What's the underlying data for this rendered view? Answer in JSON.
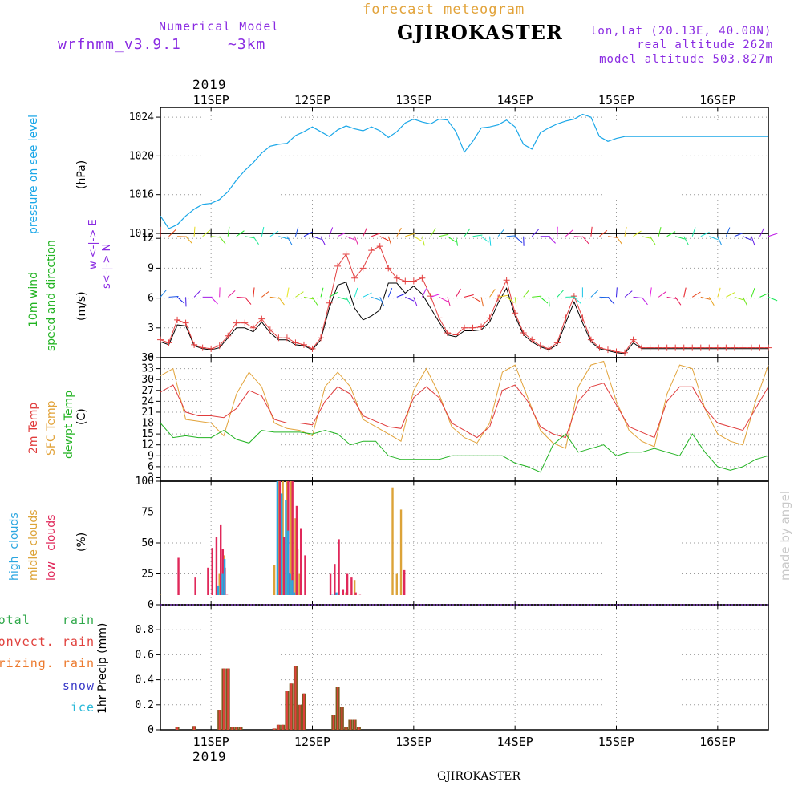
{
  "header": {
    "model_title": "Numerical Model",
    "model_name": "wrfnmm_v3.9.1",
    "resolution": "~3km",
    "product": "forecast meteogram",
    "location": "GJIROKASTER",
    "coords": "lon,lat (20.13E, 40.08N)",
    "real_altitude": "real altitude 262m",
    "model_altitude": "model altitude  503.827m",
    "year": "2019",
    "footer_location": "GJIROKASTER",
    "watermark": "made by angel"
  },
  "colors": {
    "pressure": "#1aa7e8",
    "temp2m": "#e03c3c",
    "sfc": "#e2a33a",
    "dewpt": "#22b322",
    "wind_obs": "#e34040",
    "wind_black": "#000000",
    "high": "#2aa6e0",
    "middle": "#dca338",
    "low": "#e0285a",
    "total": "#2fa84a",
    "convect": "#e0403c",
    "freezing": "#ec7a2e",
    "snow": "#3a3ac8",
    "ice": "#28b8d8",
    "purple": "#8a2be2"
  },
  "panel_labels": {
    "pressure": [
      "pressure on see level",
      "(hPa)"
    ],
    "wind": [
      "10m wind",
      "speed and direction",
      "(m/s)",
      "w <-|-> E",
      "s<-|-> N"
    ],
    "temp": [
      "2m Temp",
      "SFC Temp",
      "dewpt Temp",
      "(C)"
    ],
    "clouds": [
      "high  clouds",
      "midle clouds",
      "low   clouds",
      "(%)"
    ],
    "precip_legend": [
      "total    rain",
      "convect. rain",
      "frizing. rain",
      "snow",
      "ice"
    ],
    "precip_axis": "1hr Precip (mm)"
  },
  "x_axis": {
    "top_labels": [
      "11SEP",
      "12SEP",
      "13SEP",
      "14SEP",
      "15SEP",
      "16SEP"
    ],
    "bottom_labels": [
      "11SEP",
      "12SEP",
      "13SEP",
      "14SEP",
      "15SEP",
      "16SEP"
    ]
  },
  "chart_data": [
    {
      "type": "line",
      "title": "pressure on see level",
      "ylabel": "(hPa)",
      "x_unit": "hours from 10SEP 12UTC",
      "ylim": [
        1012,
        1025
      ],
      "y_ticks": [
        "1012",
        "1016",
        "1020",
        "1024"
      ],
      "series": [
        {
          "name": "pressure on see level",
          "x": [
            0,
            2,
            4,
            6,
            8,
            10,
            12,
            14,
            16,
            18,
            20,
            22,
            24,
            26,
            28,
            30,
            32,
            34,
            36,
            38,
            40,
            42,
            44,
            46,
            48,
            50,
            52,
            54,
            56,
            58,
            60,
            62,
            64,
            66,
            68,
            70,
            72,
            74,
            76,
            78,
            80,
            82,
            84,
            86,
            88,
            90,
            92,
            94,
            96,
            98,
            100,
            102,
            104,
            106,
            108,
            110,
            112,
            114,
            116,
            118,
            120,
            122,
            124,
            126,
            128,
            130,
            132,
            134,
            136,
            138,
            140,
            142,
            144
          ],
          "values": [
            1013.8,
            1012.5,
            1012.9,
            1013.8,
            1014.5,
            1015.0,
            1015.1,
            1015.5,
            1016.3,
            1017.5,
            1018.5,
            1019.3,
            1020.3,
            1021.0,
            1021.2,
            1021.3,
            1022.1,
            1022.5,
            1023.0,
            1022.5,
            1022.0,
            1022.7,
            1023.1,
            1022.8,
            1022.6,
            1023.0,
            1022.6,
            1021.9,
            1022.5,
            1023.4,
            1023.8,
            1023.5,
            1023.3,
            1023.8,
            1023.7,
            1022.5,
            1020.4,
            1021.5,
            1022.9,
            1023.0,
            1023.2,
            1023.7,
            1023.0,
            1021.2,
            1020.7,
            1022.4,
            1022.9,
            1023.3,
            1023.6,
            1023.8,
            1024.3,
            1024.0,
            1022.0,
            1021.5,
            1021.8,
            1022.0,
            1022.0,
            1022.0,
            1022.0,
            1022.0,
            1022.0,
            1022.0,
            1022.0,
            1022.0,
            1022.0,
            1022.0,
            1022.0,
            1022.0,
            1022.0,
            1022.0,
            1022.0,
            1022.0,
            1022.0
          ]
        }
      ]
    },
    {
      "type": "line",
      "title": "10m wind speed and direction",
      "ylabel": "(m/s)",
      "ylim": [
        0,
        12.5
      ],
      "y_ticks": [
        "0",
        "3",
        "6",
        "9",
        "12"
      ],
      "series": [
        {
          "name": "",
          "x": [
            0,
            2,
            4,
            6,
            8,
            10,
            12,
            14,
            16,
            18,
            20,
            22,
            24,
            26,
            28,
            30,
            32,
            34,
            36,
            38,
            40,
            42,
            44,
            46,
            48,
            50,
            52,
            54,
            56,
            58,
            60,
            62,
            64,
            66,
            68,
            70,
            72,
            74,
            76,
            78,
            80,
            82,
            84,
            86,
            88,
            90,
            92,
            94,
            96,
            98,
            100,
            102,
            104,
            106,
            108,
            110,
            112,
            114,
            116,
            118,
            120,
            122,
            124,
            126,
            128,
            130,
            132,
            134,
            136,
            138,
            140,
            142,
            144
          ],
          "values": [
            1.8,
            1.5,
            3.8,
            3.5,
            1.3,
            1.0,
            0.9,
            1.2,
            2.2,
            3.5,
            3.5,
            3.0,
            3.9,
            2.8,
            2.0,
            2.0,
            1.5,
            1.3,
            0.9,
            2.0,
            5.5,
            9.2,
            10.4,
            8.0,
            9.0,
            10.8,
            11.2,
            9.0,
            8.0,
            7.7,
            7.7,
            8.0,
            6.2,
            4.0,
            2.5,
            2.3,
            3.0,
            3.0,
            3.1,
            4.0,
            6.0,
            7.8,
            4.5,
            2.5,
            1.8,
            1.2,
            0.9,
            1.5,
            4.0,
            6.2,
            4.0,
            1.8,
            1.0,
            0.8,
            0.6,
            0.5,
            1.8,
            1.0,
            1.0,
            1.0,
            1.0,
            1.0,
            1.0,
            1.0,
            1.0,
            1.0,
            1.0,
            1.0,
            1.0,
            1.0,
            1.0,
            1.0,
            1.0
          ]
        },
        {
          "name": "",
          "x": [
            0,
            2,
            4,
            6,
            8,
            10,
            12,
            14,
            16,
            18,
            20,
            22,
            24,
            26,
            28,
            30,
            32,
            34,
            36,
            38,
            40,
            42,
            44,
            46,
            48,
            50,
            52,
            54,
            56,
            58,
            60,
            62,
            64,
            66,
            68,
            70,
            72,
            74,
            76,
            78,
            80,
            82,
            84,
            86,
            88,
            90,
            92,
            94,
            96,
            98,
            100,
            102,
            104,
            106,
            108,
            110,
            112,
            114,
            116,
            118,
            120,
            122,
            124,
            126,
            128,
            130,
            132,
            134,
            136,
            138,
            140,
            142,
            144
          ],
          "values": [
            1.6,
            1.3,
            3.3,
            3.2,
            1.2,
            0.9,
            0.8,
            1.0,
            2.0,
            3.0,
            3.0,
            2.6,
            3.6,
            2.5,
            1.8,
            1.8,
            1.3,
            1.2,
            0.8,
            1.8,
            5.0,
            7.3,
            7.6,
            5.0,
            3.8,
            4.2,
            4.8,
            7.5,
            7.5,
            6.5,
            7.2,
            6.4,
            5.0,
            3.6,
            2.3,
            2.1,
            2.7,
            2.7,
            2.8,
            3.6,
            5.5,
            7.0,
            4.2,
            2.3,
            1.6,
            1.1,
            0.8,
            1.3,
            3.5,
            5.6,
            3.5,
            1.6,
            0.9,
            0.7,
            0.5,
            0.4,
            1.5,
            0.9,
            0.9,
            0.9,
            0.9,
            0.9,
            0.9,
            0.9,
            0.9,
            0.9,
            0.9,
            0.9,
            0.9,
            0.9,
            0.9,
            0.9,
            0.9
          ]
        }
      ]
    },
    {
      "type": "line",
      "title": "2m Temp / SFC Temp / dewpt Temp",
      "ylabel": "(C)",
      "ylim": [
        2,
        36
      ],
      "y_ticks": [
        "3",
        "6",
        "9",
        "12",
        "15",
        "18",
        "21",
        "24",
        "27",
        "30",
        "33",
        "36"
      ],
      "series": [
        {
          "name": "2m Temp",
          "x": [
            0,
            3,
            6,
            9,
            12,
            15,
            18,
            21,
            24,
            27,
            30,
            33,
            36,
            39,
            42,
            45,
            48,
            51,
            54,
            57,
            60,
            63,
            66,
            69,
            72,
            75,
            78,
            81,
            84,
            87,
            90,
            93,
            96,
            99,
            102,
            105,
            108,
            111,
            114,
            117,
            120,
            123,
            126,
            129,
            132,
            135,
            138,
            141,
            144
          ],
          "values": [
            26.5,
            28.5,
            21,
            20,
            20,
            19.5,
            22,
            27,
            25.5,
            19,
            18,
            18,
            17.5,
            24,
            28,
            26,
            20,
            18.5,
            17,
            16.5,
            25,
            28,
            25,
            18,
            16,
            14,
            17,
            27,
            28.5,
            24,
            17,
            15,
            14,
            24,
            28,
            29,
            23,
            17,
            15.5,
            14,
            24,
            28,
            28,
            22,
            18,
            17,
            16,
            22,
            28
          ]
        },
        {
          "name": "SFC Temp",
          "x": [
            0,
            3,
            6,
            9,
            12,
            15,
            18,
            21,
            24,
            27,
            30,
            33,
            36,
            39,
            42,
            45,
            48,
            51,
            54,
            57,
            60,
            63,
            66,
            69,
            72,
            75,
            78,
            81,
            84,
            87,
            90,
            93,
            96,
            99,
            102,
            105,
            108,
            111,
            114,
            117,
            120,
            123,
            126,
            129,
            132,
            135,
            138,
            141,
            144
          ],
          "values": [
            31,
            33,
            19,
            18.5,
            18,
            14.5,
            26,
            32,
            28,
            18,
            16.5,
            16,
            14.5,
            28,
            32,
            28,
            19,
            17,
            15,
            13,
            27,
            33,
            26,
            17,
            14,
            12.5,
            18,
            32,
            34,
            25,
            16,
            12.5,
            11,
            28,
            34,
            35,
            24,
            16,
            13,
            11.5,
            26,
            34,
            33,
            22,
            15,
            13,
            12,
            24,
            34
          ]
        },
        {
          "name": "dewpt Temp",
          "x": [
            0,
            3,
            6,
            9,
            12,
            15,
            18,
            21,
            24,
            27,
            30,
            33,
            36,
            39,
            42,
            45,
            48,
            51,
            54,
            57,
            60,
            63,
            66,
            69,
            72,
            75,
            78,
            81,
            84,
            87,
            90,
            93,
            96,
            99,
            102,
            105,
            108,
            111,
            114,
            117,
            120,
            123,
            126,
            129,
            132,
            135,
            138,
            141,
            144
          ],
          "values": [
            18,
            14,
            14.5,
            14,
            14,
            16,
            13.5,
            12.5,
            16,
            15.5,
            15.5,
            15.5,
            15,
            16,
            15,
            12,
            13,
            13,
            9,
            8,
            8,
            8,
            8,
            9,
            9,
            9,
            9,
            9,
            7,
            6,
            4.5,
            12,
            15,
            10,
            11,
            12,
            9,
            10,
            10,
            11,
            10,
            9,
            15,
            10,
            6,
            5,
            6,
            8,
            9
          ]
        }
      ]
    },
    {
      "type": "bar",
      "title": "clouds",
      "ylabel": "(%)",
      "ylim": [
        0,
        100
      ],
      "y_ticks": [
        "0",
        "25",
        "50",
        "75",
        "100"
      ],
      "series": [
        {
          "name": "high  clouds",
          "x": [
            14,
            15,
            15.5,
            28,
            29,
            30,
            30.5,
            31,
            31.5,
            32,
            41,
            41.5,
            42,
            42.5,
            43
          ],
          "values": [
            15,
            25,
            37,
            100,
            90,
            85,
            60,
            25,
            20,
            10,
            8,
            5,
            10,
            5,
            5
          ]
        },
        {
          "name": "midle clouds",
          "x": [
            0,
            13,
            14,
            15,
            27,
            28,
            29,
            30,
            31,
            32,
            32.5,
            33,
            34,
            40,
            42,
            44,
            45,
            46,
            55,
            56,
            57,
            58
          ],
          "values": [
            8,
            5,
            25,
            40,
            32,
            100,
            100,
            100,
            100,
            70,
            45,
            25,
            5,
            5,
            5,
            10,
            8,
            20,
            95,
            25,
            77,
            5
          ]
        },
        {
          "name": "low   clouds",
          "x": [
            4,
            8,
            11,
            12,
            13,
            14,
            14.5,
            15,
            15.5,
            28,
            29,
            30,
            31,
            32,
            33,
            34,
            40,
            41,
            42,
            43,
            44,
            45,
            46,
            47,
            57.5
          ],
          "values": [
            38,
            22,
            30,
            46,
            55,
            65,
            45,
            30,
            8,
            100,
            55,
            100,
            100,
            80,
            62,
            40,
            25,
            33,
            53,
            12,
            25,
            22,
            10,
            8,
            28
          ]
        }
      ]
    },
    {
      "type": "bar",
      "title": "1hr Precip",
      "ylabel": "1hr Precip (mm)",
      "ylim": [
        0,
        1.0
      ],
      "y_ticks": [
        "0",
        "0.2",
        "0.4",
        "0.6",
        "0.8"
      ],
      "series": [
        {
          "name": "total    rain",
          "x": [
            4,
            8,
            14,
            15,
            16,
            17,
            18,
            19,
            27,
            28,
            29,
            30,
            31,
            32,
            33,
            34,
            41,
            42,
            43,
            44,
            45,
            46,
            47
          ],
          "values": [
            0.02,
            0.03,
            0.16,
            0.49,
            0.49,
            0.02,
            0.02,
            0.02,
            0.01,
            0.04,
            0.04,
            0.31,
            0.37,
            0.51,
            0.2,
            0.29,
            0.12,
            0.34,
            0.18,
            0.02,
            0.08,
            0.08,
            0.02
          ]
        }
      ]
    }
  ]
}
